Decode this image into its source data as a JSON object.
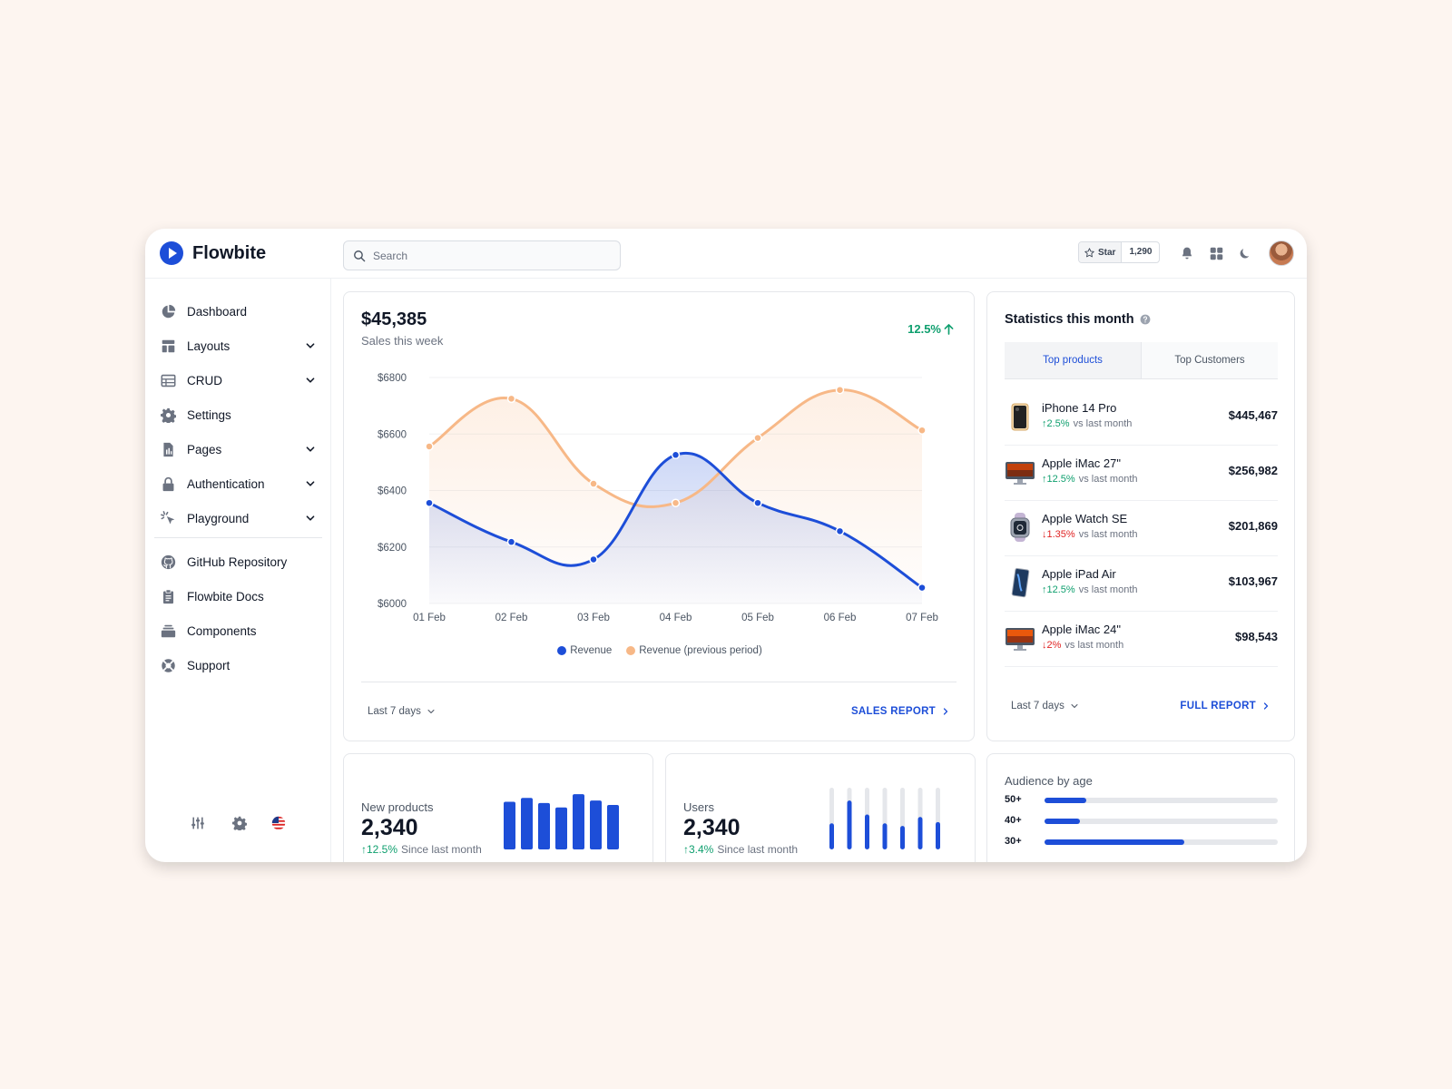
{
  "app": {
    "name": "Flowbite",
    "search_placeholder": "Search",
    "star_label": "Star",
    "star_count": "1,290"
  },
  "sidebar": {
    "items": [
      {
        "label": "Dashboard",
        "icon": "chart-pie-icon",
        "chevron": false
      },
      {
        "label": "Layouts",
        "icon": "layout-icon",
        "chevron": true
      },
      {
        "label": "CRUD",
        "icon": "table-icon",
        "chevron": true
      },
      {
        "label": "Settings",
        "icon": "gear-icon",
        "chevron": false
      },
      {
        "label": "Pages",
        "icon": "document-icon",
        "chevron": true
      },
      {
        "label": "Authentication",
        "icon": "lock-icon",
        "chevron": true
      },
      {
        "label": "Playground",
        "icon": "cursor-click-icon",
        "chevron": true
      }
    ],
    "secondary": [
      {
        "label": "GitHub Repository",
        "icon": "github-icon"
      },
      {
        "label": "Flowbite Docs",
        "icon": "clipboard-icon"
      },
      {
        "label": "Components",
        "icon": "collection-icon"
      },
      {
        "label": "Support",
        "icon": "lifebuoy-icon"
      }
    ],
    "bottom_icons": [
      "adjustments-icon",
      "gear-icon",
      "us-flag-icon"
    ]
  },
  "sales": {
    "total": "$45,385",
    "subtitle": "Sales this week",
    "change": "12.5%",
    "range": "Last 7 days",
    "report_link": "SALES REPORT"
  },
  "chart_data": {
    "type": "area",
    "categories": [
      "01 Feb",
      "02 Feb",
      "03 Feb",
      "04 Feb",
      "05 Feb",
      "06 Feb",
      "07 Feb"
    ],
    "y_ticks": [
      "$6800",
      "$6600",
      "$6400",
      "$6200",
      "$6000"
    ],
    "ylim": [
      6000,
      6800
    ],
    "series": [
      {
        "name": "Revenue",
        "color": "#1d4ed8",
        "values": [
          6356,
          6218,
          6156,
          6526,
          6356,
          6256,
          6056
        ]
      },
      {
        "name": "Revenue (previous period)",
        "color": "#f7b887",
        "values": [
          6556,
          6725,
          6424,
          6356,
          6586,
          6756,
          6613
        ]
      }
    ],
    "legend": "bottom",
    "grid": true
  },
  "stats": {
    "title": "Statistics this month",
    "tabs": [
      "Top products",
      "Top Customers"
    ],
    "products": [
      {
        "name": "iPhone 14 Pro",
        "change": "2.5%",
        "direction": "up",
        "suffix": "vs last month",
        "value": "$445,467",
        "icon": "iphone-icon"
      },
      {
        "name": "Apple iMac 27\"",
        "change": "12.5%",
        "direction": "up",
        "suffix": "vs last month",
        "value": "$256,982",
        "icon": "imac-icon"
      },
      {
        "name": "Apple Watch SE",
        "change": "1.35%",
        "direction": "down",
        "suffix": "vs last month",
        "value": "$201,869",
        "icon": "watch-icon"
      },
      {
        "name": "Apple iPad Air",
        "change": "12.5%",
        "direction": "up",
        "suffix": "vs last month",
        "value": "$103,967",
        "icon": "ipad-icon"
      },
      {
        "name": "Apple iMac 24\"",
        "change": "2%",
        "direction": "down",
        "suffix": "vs last month",
        "value": "$98,543",
        "icon": "imac-icon"
      }
    ],
    "range": "Last 7 days",
    "report_link": "FULL REPORT"
  },
  "new_products": {
    "label": "New products",
    "value": "2,340",
    "change": "12.5%",
    "suffix": "Since last month",
    "bars": [
      0.75,
      0.81,
      0.73,
      0.66,
      0.87,
      0.77,
      0.7
    ]
  },
  "users": {
    "label": "Users",
    "value": "2,340",
    "change": "3.4%",
    "suffix": "Since last month",
    "bars": [
      0.41,
      0.77,
      0.55,
      0.41,
      0.37,
      0.51,
      0.43
    ]
  },
  "audience": {
    "title": "Audience by age",
    "rows": [
      {
        "label": "50+",
        "fraction": 0.18
      },
      {
        "label": "40+",
        "fraction": 0.15
      },
      {
        "label": "30+",
        "fraction": 0.6
      }
    ]
  }
}
